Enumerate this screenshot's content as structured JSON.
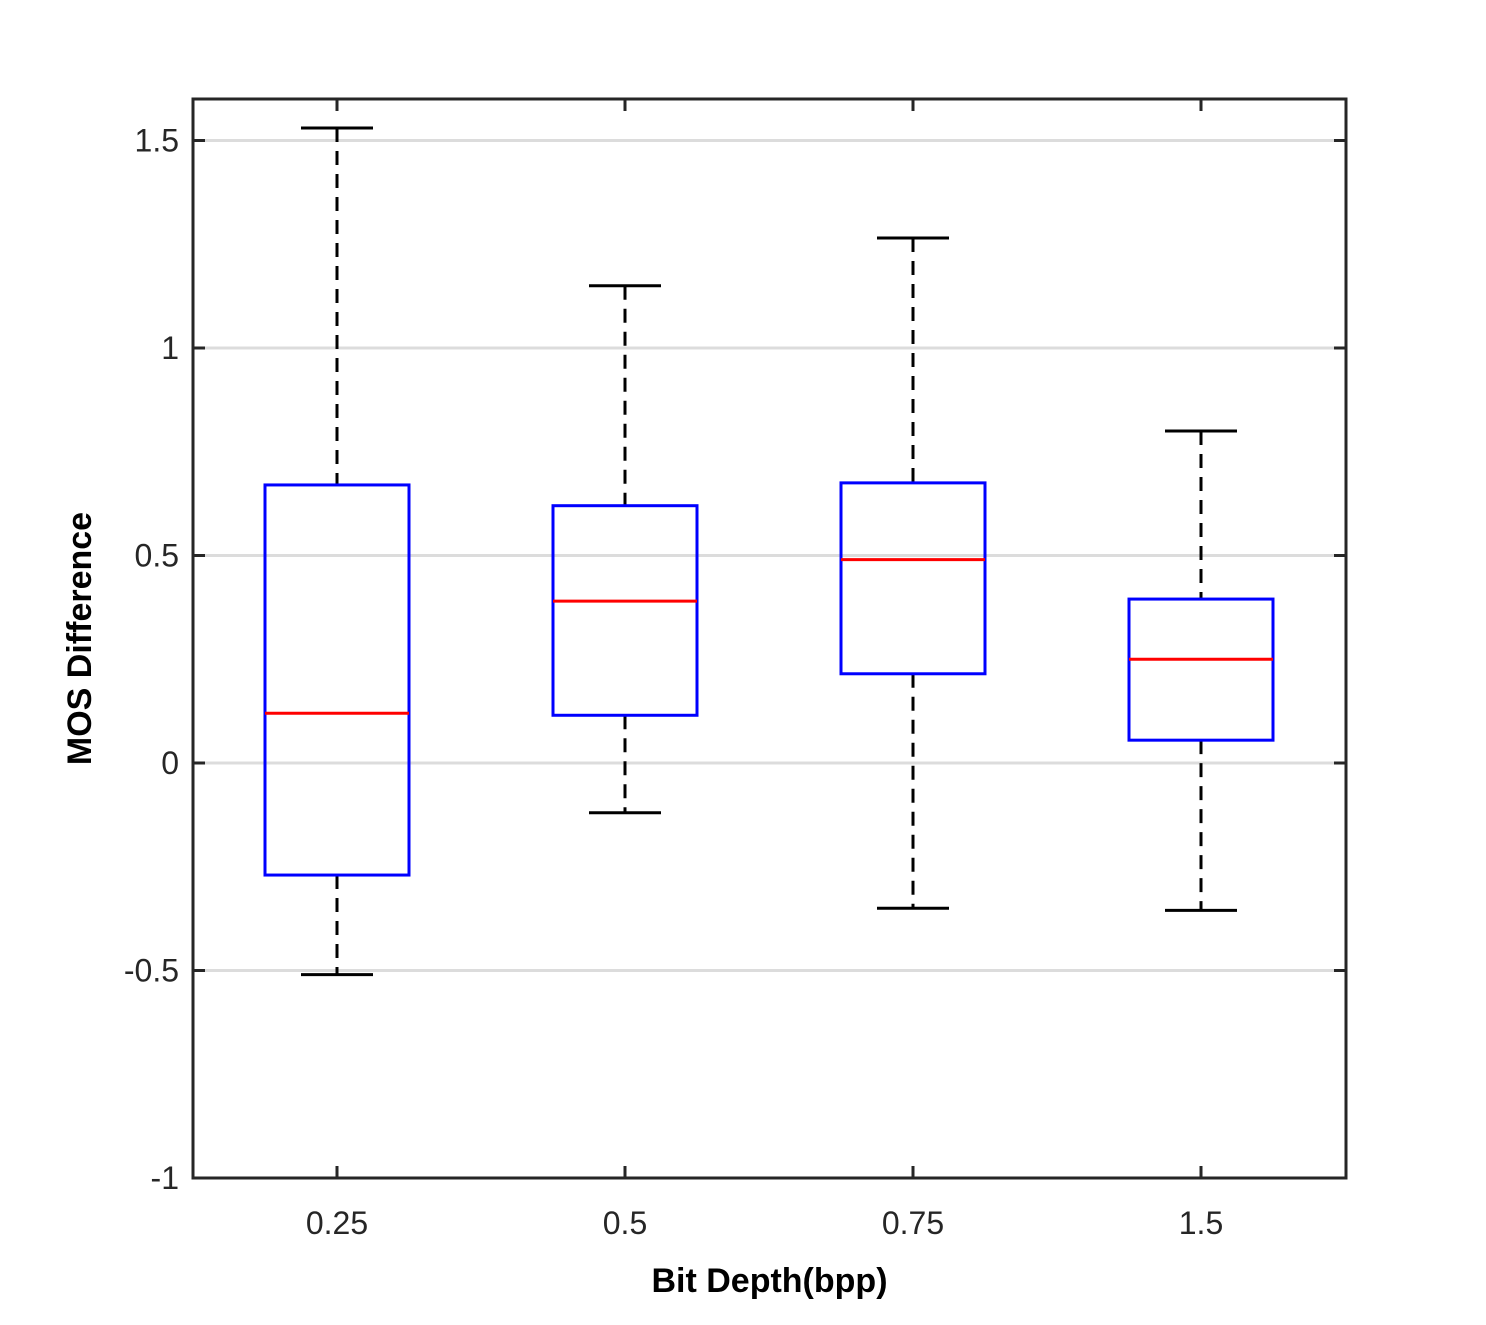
{
  "chart_data": {
    "type": "box",
    "title": "",
    "xlabel": "Bit Depth(bpp)",
    "ylabel": "MOS Difference",
    "ylim": [
      -1,
      1.6
    ],
    "yticks": [
      -1,
      -0.5,
      0,
      0.5,
      1,
      1.5
    ],
    "ytick_labels": [
      "-1",
      "-0.5",
      "0",
      "0.5",
      "1",
      "1.5"
    ],
    "grid": "horizontal",
    "categories": [
      "0.25",
      "0.5",
      "0.75",
      "1.5"
    ],
    "boxes": [
      {
        "category": "0.25",
        "whisker_low": -0.51,
        "q1": -0.27,
        "median": 0.12,
        "q3": 0.67,
        "whisker_high": 1.53
      },
      {
        "category": "0.5",
        "whisker_low": -0.12,
        "q1": 0.115,
        "median": 0.39,
        "q3": 0.62,
        "whisker_high": 1.15
      },
      {
        "category": "0.75",
        "whisker_low": -0.35,
        "q1": 0.215,
        "median": 0.49,
        "q3": 0.675,
        "whisker_high": 1.265
      },
      {
        "category": "1.5",
        "whisker_low": -0.355,
        "q1": 0.055,
        "median": 0.25,
        "q3": 0.395,
        "whisker_high": 0.8
      }
    ],
    "colors": {
      "box": "#0000ff",
      "median": "#ff0000",
      "whisker": "#000000",
      "grid": "#dcdcdc",
      "axis": "#262626"
    }
  }
}
